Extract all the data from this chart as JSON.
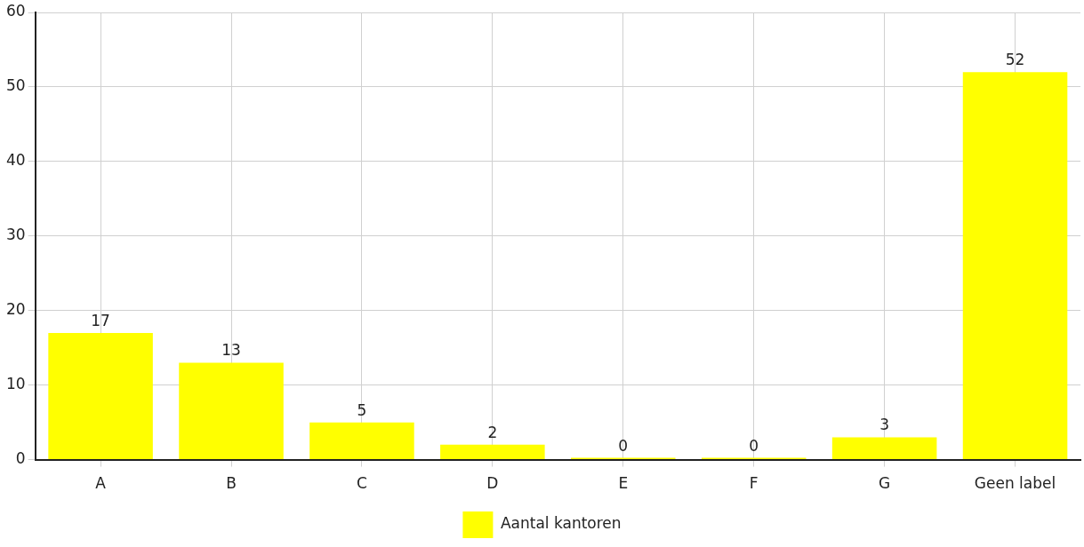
{
  "chart_data": {
    "type": "bar",
    "categories": [
      "A",
      "B",
      "C",
      "D",
      "E",
      "F",
      "G",
      "Geen label"
    ],
    "series": [
      {
        "name": "Aantal kantoren",
        "color": "#ffff00",
        "values": [
          17,
          13,
          5,
          2,
          0,
          0,
          3,
          52
        ]
      }
    ],
    "ylim": [
      0,
      60
    ],
    "yticks": [
      0,
      10,
      20,
      30,
      40,
      50,
      60
    ],
    "grid": true,
    "legend": "bottom",
    "data_labels": true
  }
}
